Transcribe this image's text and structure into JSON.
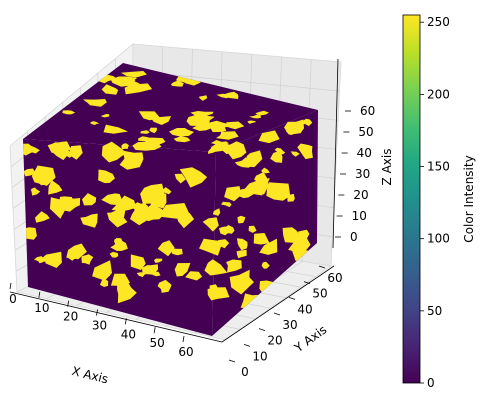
{
  "chart_data": {
    "type": "voxel",
    "title": "",
    "xlabel": "X Axis",
    "ylabel": "Y Axis",
    "zlabel": "Z Axis",
    "x_ticks": [
      0,
      10,
      20,
      30,
      40,
      50,
      60
    ],
    "y_ticks": [
      0,
      10,
      20,
      30,
      40,
      50,
      60
    ],
    "z_ticks": [
      0,
      10,
      20,
      30,
      40,
      50,
      60
    ],
    "xlim": [
      0,
      64
    ],
    "ylim": [
      0,
      64
    ],
    "zlim": [
      0,
      64
    ],
    "colorbar": {
      "label": "Color Intensity",
      "range": [
        0,
        255
      ],
      "ticks": [
        0,
        50,
        100,
        150,
        200,
        250
      ],
      "colormap": "viridis"
    },
    "values_present": [
      0,
      255
    ],
    "colors": {
      "low": "#440154",
      "high": "#fde725"
    }
  }
}
